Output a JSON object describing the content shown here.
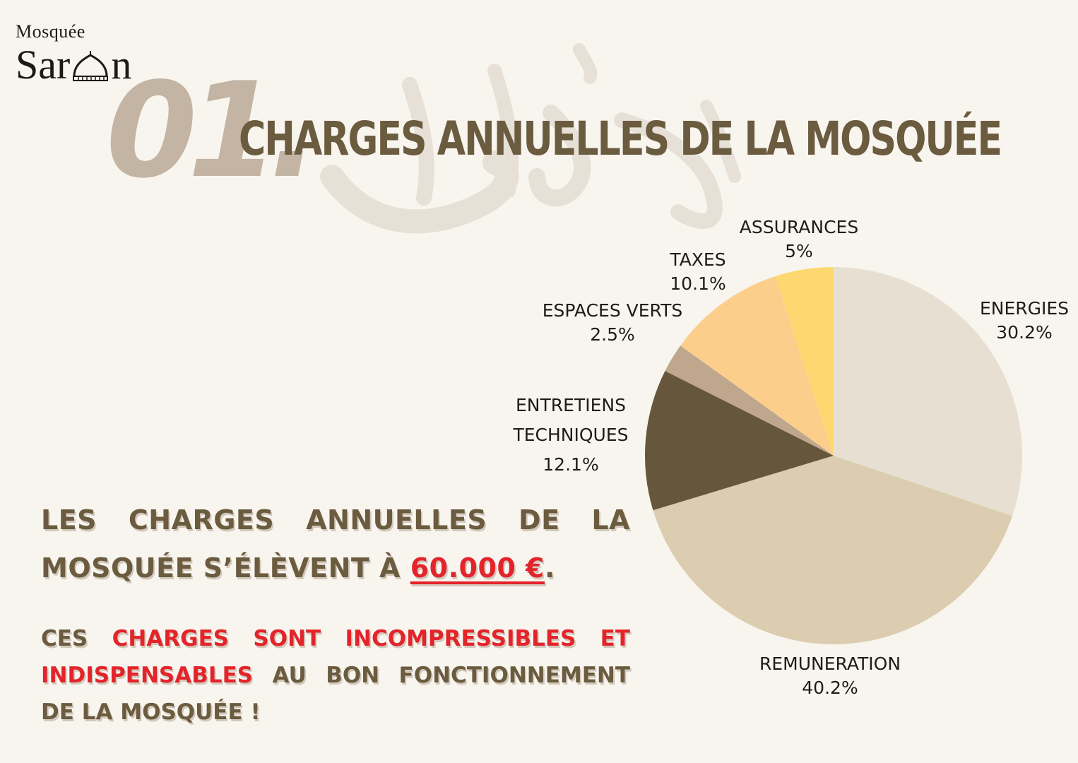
{
  "logo": {
    "top": "Mosquée",
    "bottom_left": "Sar",
    "bottom_right": "n"
  },
  "header": {
    "number": "01.",
    "title": "CHARGES ANNUELLES DE LA MOSQUÉE"
  },
  "chart_data": {
    "type": "pie",
    "title": "",
    "slices": [
      {
        "label": "ENERGIES",
        "value": 30.2,
        "value_label": "30.2%",
        "color": "#e7e0d2"
      },
      {
        "label": "REMUNERATION",
        "value": 40.2,
        "value_label": "40.2%",
        "color": "#dccdb0"
      },
      {
        "label": "ENTRETIENS TECHNIQUES",
        "value": 12.1,
        "value_label": "12.1%",
        "color": "#66573c"
      },
      {
        "label": "ESPACES VERTS",
        "value": 2.5,
        "value_label": "2.5%",
        "color": "#bea78d"
      },
      {
        "label": "TAXES",
        "value": 10.1,
        "value_label": "10.1%",
        "color": "#fcce8c"
      },
      {
        "label": "ASSURANCES",
        "value": 5,
        "value_label": "5%",
        "color": "#fdd870"
      }
    ]
  },
  "statement": {
    "text_before": "LES CHARGES ANNUELLES DE LA MOSQUÉE S’ÉLÈVENT À ",
    "amount": "60.000 €",
    "text_after": "."
  },
  "note": {
    "part1": "CES ",
    "part2_red": "CHARGES SONT INCOMPRESSIBLES ET INDISPENSABLES",
    "part3": " AU BON FONCTIONNEMENT DE LA MOSQUÉE !"
  },
  "colors": {
    "background": "#f8f5ef",
    "title": "#6b5b3f",
    "number": "#c3b4a3",
    "accent_red": "#e3242b"
  }
}
